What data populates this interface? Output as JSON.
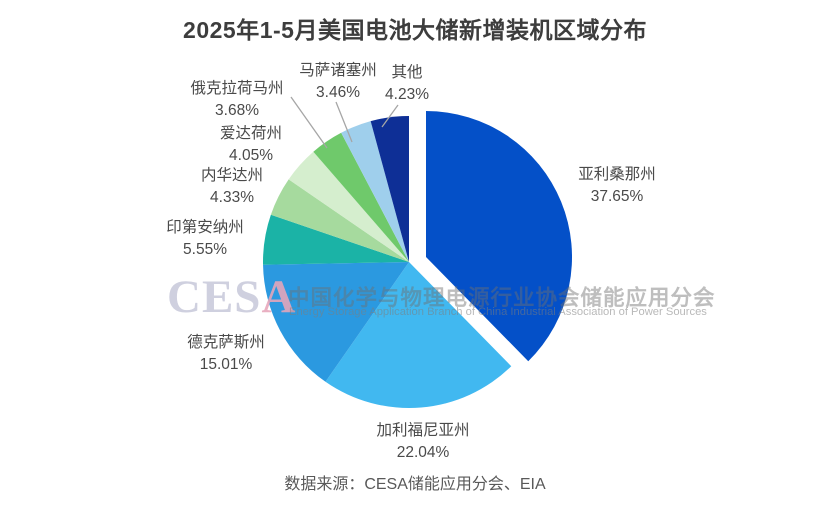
{
  "title": "2025年1-5月美国电池大储新增装机区域分布",
  "source_note": "数据来源：CESA储能应用分会、EIA",
  "watermark": {
    "logo_text_main": "CES",
    "logo_text_accent": "A",
    "logo_color": "#c9cadb",
    "logo_accent_color": "#e7a6ba",
    "cn": "中国化学与物理电源行业协会储能应用分会",
    "en": "Energy Storage Application Branch of China Industrial Association of Power Sources"
  },
  "chart_data": {
    "type": "pie",
    "title": "2025年1-5月美国电池大储新增装机区域分布",
    "unit": "percent of new installed capacity",
    "order": "clockwise from 12 o'clock",
    "legend_position": "none (direct slice labels)",
    "slices": [
      {
        "name": "亚利桑那州",
        "value": 37.65,
        "pct_label": "37.65%",
        "color": "#0450C8",
        "exploded": true
      },
      {
        "name": "加利福尼亚州",
        "value": 22.04,
        "pct_label": "22.04%",
        "color": "#41B8F0",
        "exploded": false
      },
      {
        "name": "德克萨斯州",
        "value": 15.01,
        "pct_label": "15.01%",
        "color": "#2B99E0",
        "exploded": false
      },
      {
        "name": "印第安纳州",
        "value": 5.55,
        "pct_label": "5.55%",
        "color": "#1BB3A6",
        "exploded": false
      },
      {
        "name": "内华达州",
        "value": 4.33,
        "pct_label": "4.33%",
        "color": "#A6DA9E",
        "exploded": false
      },
      {
        "name": "爱达荷州",
        "value": 4.05,
        "pct_label": "4.05%",
        "color": "#D5EECE",
        "exploded": false
      },
      {
        "name": "俄克拉荷马州",
        "value": 3.68,
        "pct_label": "3.68%",
        "color": "#6FC96B",
        "exploded": false
      },
      {
        "name": "马萨诸塞州",
        "value": 3.46,
        "pct_label": "3.46%",
        "color": "#9FCFEC",
        "exploded": false
      },
      {
        "name": "其他",
        "value": 4.23,
        "pct_label": "4.23%",
        "color": "#0E2F96",
        "exploded": false
      }
    ]
  }
}
